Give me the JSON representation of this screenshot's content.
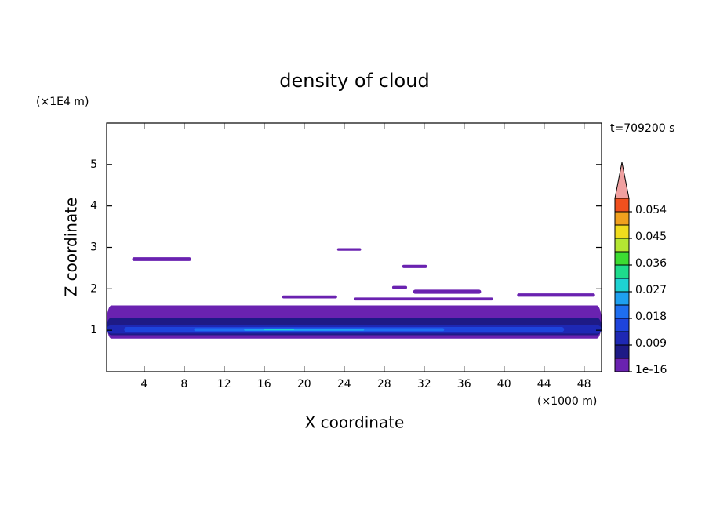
{
  "chart_data": {
    "type": "contour",
    "title": "density of cloud",
    "time_label": "t=709200 s",
    "x_label": "X coordinate",
    "y_label": "Z coordinate",
    "x_unit": "(×1000 m)",
    "y_unit": "(×1E4 m)",
    "xlim": [
      0.25,
      49.75
    ],
    "ylim": [
      0,
      6
    ],
    "xticks": [
      4,
      8,
      12,
      16,
      20,
      24,
      28,
      32,
      36,
      40,
      44,
      48
    ],
    "yticks": [
      1,
      2,
      3,
      4,
      5
    ],
    "levels": [
      1e-16,
      0.0045,
      0.009,
      0.0135,
      0.018,
      0.0225,
      0.027,
      0.0315,
      0.036,
      0.0405,
      0.045,
      0.0495,
      0.054,
      0.0585
    ],
    "colors": [
      "#6a22b0",
      "#1e1a86",
      "#1e28b4",
      "#1e44dc",
      "#1e6ef0",
      "#1ea0f0",
      "#1ed2d2",
      "#1edc8c",
      "#3cdc32",
      "#b4e632",
      "#f0dc1e",
      "#f0a01e",
      "#f0501e"
    ],
    "extend_color": "#f0a0a0",
    "colorbar_ticks": [
      {
        "value": 1e-16,
        "label": "1e-16"
      },
      0.009,
      0.018,
      0.027,
      0.036,
      0.045,
      0.054
    ],
    "regions": [
      {
        "x": [
          0.25,
          49.75
        ],
        "z": [
          0.8,
          1.6
        ],
        "value": 1e-16
      },
      {
        "x": [
          0.25,
          49.75
        ],
        "z": [
          0.88,
          1.3
        ],
        "value": 0.0045
      },
      {
        "x": [
          0.25,
          49.75
        ],
        "z": [
          0.92,
          1.12
        ],
        "value": 0.009
      },
      {
        "x": [
          2,
          46
        ],
        "z": [
          0.96,
          1.08
        ],
        "value": 0.0135
      },
      {
        "x": [
          9,
          34
        ],
        "z": [
          0.98,
          1.05
        ],
        "value": 0.018
      },
      {
        "x": [
          14,
          26
        ],
        "z": [
          0.99,
          1.04
        ],
        "value": 0.0225
      },
      {
        "x": [
          16,
          19
        ],
        "z": [
          1.0,
          1.03
        ],
        "value": 0.03
      },
      {
        "x": [
          2.8,
          8.7
        ],
        "z": [
          2.67,
          2.76
        ],
        "value": 1e-16
      },
      {
        "x": [
          23.3,
          25.7
        ],
        "z": [
          2.92,
          2.98
        ],
        "value": 1e-16
      },
      {
        "x": [
          29.8,
          32.3
        ],
        "z": [
          2.5,
          2.58
        ],
        "value": 1e-16
      },
      {
        "x": [
          28.8,
          30.3
        ],
        "z": [
          2.0,
          2.07
        ],
        "value": 1e-16
      },
      {
        "x": [
          17.8,
          23.3
        ],
        "z": [
          1.77,
          1.84
        ],
        "value": 1e-16
      },
      {
        "x": [
          30.9,
          37.7
        ],
        "z": [
          1.88,
          1.98
        ],
        "value": 1e-16
      },
      {
        "x": [
          25,
          38.9
        ],
        "z": [
          1.72,
          1.79
        ],
        "value": 1e-16
      },
      {
        "x": [
          41.3,
          49.1
        ],
        "z": [
          1.81,
          1.89
        ],
        "value": 1e-16
      }
    ]
  }
}
